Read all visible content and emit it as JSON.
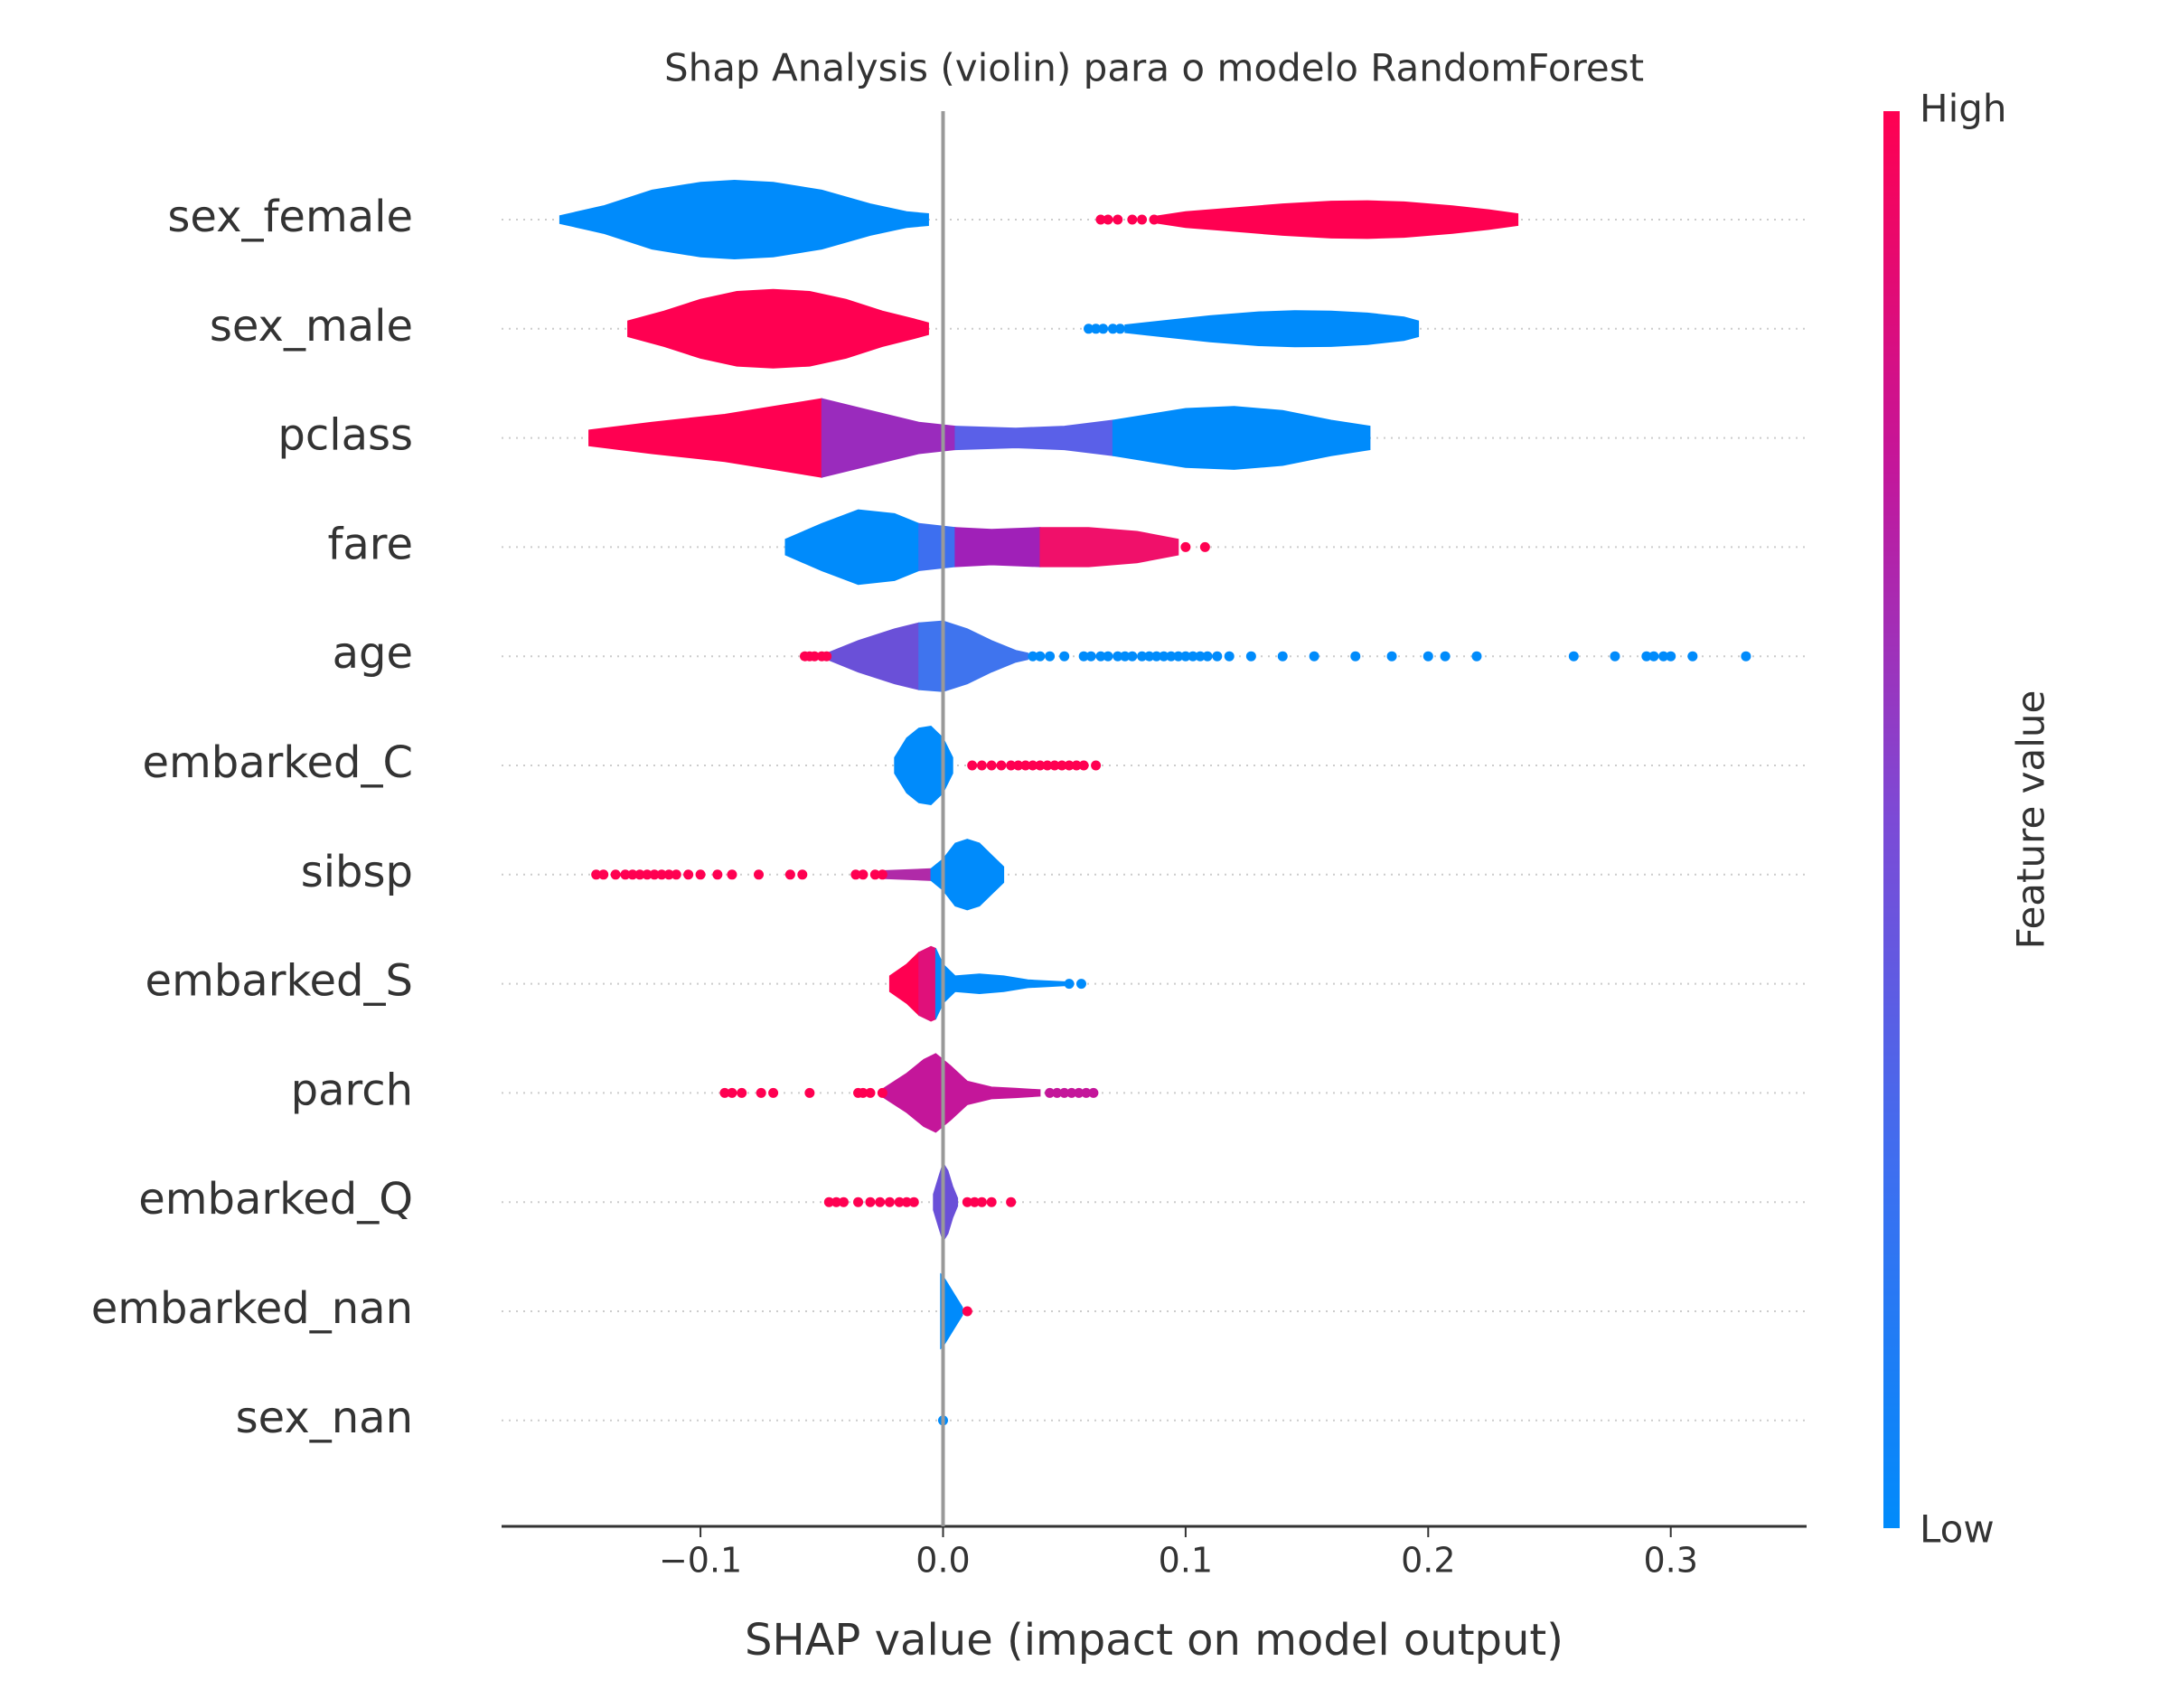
{
  "chart_data": {
    "type": "violin",
    "title": "Shap Analysis (violin) para o modelo RandomForest",
    "xlabel": "SHAP value (impact on model output)",
    "xlim": [
      -0.182,
      0.356
    ],
    "xticks": [
      {
        "value": -0.1,
        "label": "−0.1"
      },
      {
        "value": 0.0,
        "label": "0.0"
      },
      {
        "value": 0.1,
        "label": "0.1"
      },
      {
        "value": 0.2,
        "label": "0.2"
      },
      {
        "value": 0.3,
        "label": "0.3"
      }
    ],
    "colorbar": {
      "label": "Feature value",
      "high": "High",
      "low": "Low",
      "colors": [
        "#008bfb",
        "#3d6ff0",
        "#7c4ad6",
        "#c4169a",
        "#ff0051"
      ]
    },
    "features": [
      {
        "name": "sex_female",
        "violins": [
          {
            "color": "#008bfb",
            "x": [
              -0.158,
              -0.14,
              -0.12,
              -0.1,
              -0.086,
              -0.07,
              -0.05,
              -0.03,
              -0.015,
              -0.006
            ],
            "density": [
              0.1,
              0.35,
              0.75,
              0.95,
              1,
              0.95,
              0.75,
              0.4,
              0.2,
              0.15
            ]
          },
          {
            "color": "#ff0051",
            "x": [
              0.087,
              0.1,
              0.12,
              0.14,
              0.16,
              0.175,
              0.19,
              0.21,
              0.225,
              0.237
            ],
            "density": [
              0.08,
              0.2,
              0.3,
              0.4,
              0.47,
              0.48,
              0.45,
              0.35,
              0.25,
              0.15
            ]
          }
        ],
        "points": [
          {
            "color": "#ff0051",
            "x": [
              0.065,
              0.068,
              0.072,
              0.078,
              0.082,
              0.087
            ]
          }
        ]
      },
      {
        "name": "sex_male",
        "violins": [
          {
            "color": "#ff0051",
            "x": [
              -0.13,
              -0.115,
              -0.1,
              -0.085,
              -0.07,
              -0.055,
              -0.04,
              -0.025,
              -0.012,
              -0.006
            ],
            "density": [
              0.2,
              0.45,
              0.75,
              0.95,
              1,
              0.95,
              0.75,
              0.45,
              0.25,
              0.15
            ]
          },
          {
            "color": "#008bfb",
            "x": [
              0.075,
              0.09,
              0.11,
              0.13,
              0.145,
              0.16,
              0.175,
              0.19,
              0.196
            ],
            "density": [
              0.1,
              0.2,
              0.33,
              0.43,
              0.46,
              0.45,
              0.4,
              0.3,
              0.2
            ]
          }
        ],
        "points": [
          {
            "color": "#008bfb",
            "x": [
              0.06,
              0.063,
              0.066,
              0.07,
              0.073
            ]
          }
        ]
      },
      {
        "name": "pclass",
        "violins": [
          {
            "color": "#ff0051",
            "x": [
              -0.146,
              -0.12,
              -0.09,
              -0.07,
              -0.05
            ],
            "density": [
              0.2,
              0.4,
              0.6,
              0.8,
              1.0
            ]
          },
          {
            "color": "#9a2bbd",
            "x": [
              -0.05,
              -0.03,
              -0.01,
              0.005
            ],
            "density": [
              1.0,
              0.7,
              0.4,
              0.3
            ]
          },
          {
            "color": "#5a60e8",
            "x": [
              0.005,
              0.03,
              0.05,
              0.07
            ],
            "density": [
              0.3,
              0.25,
              0.3,
              0.45
            ]
          },
          {
            "color": "#008bfb",
            "x": [
              0.07,
              0.1,
              0.12,
              0.14,
              0.16,
              0.176
            ],
            "density": [
              0.45,
              0.75,
              0.8,
              0.7,
              0.45,
              0.3
            ]
          }
        ],
        "points": []
      },
      {
        "name": "fare",
        "violins": [
          {
            "color": "#008bfb",
            "x": [
              -0.065,
              -0.05,
              -0.035,
              -0.02,
              -0.01
            ],
            "density": [
              0.2,
              0.6,
              0.95,
              0.85,
              0.6
            ]
          },
          {
            "color": "#3d6ff0",
            "x": [
              -0.01,
              0.005
            ],
            "density": [
              0.6,
              0.5
            ]
          },
          {
            "color": "#a020b8",
            "x": [
              0.005,
              0.02,
              0.04
            ],
            "density": [
              0.5,
              0.45,
              0.5
            ]
          },
          {
            "color": "#f0106a",
            "x": [
              0.04,
              0.06,
              0.08,
              0.097
            ],
            "density": [
              0.5,
              0.5,
              0.4,
              0.2
            ]
          }
        ],
        "points": [
          {
            "color": "#ff0051",
            "x": [
              0.1,
              0.108
            ]
          }
        ]
      },
      {
        "name": "age",
        "violins": [
          {
            "color": "#6a50d8",
            "x": [
              -0.047,
              -0.035,
              -0.02,
              -0.01
            ],
            "density": [
              0.1,
              0.4,
              0.7,
              0.85
            ]
          },
          {
            "color": "#3f74ee",
            "x": [
              -0.01,
              0,
              0.01,
              0.02,
              0.03,
              0.035
            ],
            "density": [
              0.85,
              0.9,
              0.7,
              0.4,
              0.15,
              0.08
            ]
          }
        ],
        "points": [
          {
            "color": "#ff0051",
            "x": [
              -0.057,
              -0.055,
              -0.053,
              -0.05,
              -0.048
            ]
          },
          {
            "color": "#008bfb",
            "x": [
              0.037,
              0.04,
              0.044,
              0.05,
              0.058,
              0.061,
              0.065,
              0.068,
              0.072,
              0.075,
              0.078,
              0.082,
              0.085,
              0.088,
              0.091,
              0.094,
              0.097,
              0.1,
              0.103,
              0.106,
              0.109,
              0.113,
              0.118,
              0.127,
              0.14,
              0.153,
              0.17,
              0.185,
              0.2,
              0.207,
              0.22,
              0.26,
              0.277,
              0.29,
              0.293,
              0.297,
              0.3,
              0.309,
              0.331
            ]
          }
        ]
      },
      {
        "name": "embarked_C",
        "violins": [
          {
            "color": "#008bfb",
            "x": [
              -0.02,
              -0.015,
              -0.01,
              -0.005,
              0,
              0.004
            ],
            "density": [
              0.2,
              0.7,
              0.95,
              1.0,
              0.7,
              0.2
            ]
          }
        ],
        "points": [
          {
            "color": "#ff0051",
            "x": [
              0.012,
              0.016,
              0.02,
              0.024,
              0.028,
              0.031,
              0.034,
              0.037,
              0.04,
              0.043,
              0.046,
              0.049,
              0.052,
              0.055,
              0.058,
              0.063
            ]
          }
        ]
      },
      {
        "name": "sibsp",
        "violins": [
          {
            "color": "#b02aa8",
            "x": [
              -0.025,
              -0.005
            ],
            "density": [
              0.1,
              0.15
            ]
          },
          {
            "color": "#008bfb",
            "x": [
              -0.005,
              0,
              0.005,
              0.01,
              0.015,
              0.02,
              0.025
            ],
            "density": [
              0.15,
              0.4,
              0.8,
              0.9,
              0.8,
              0.5,
              0.2
            ]
          }
        ],
        "points": [
          {
            "color": "#ff0051",
            "x": [
              -0.143,
              -0.14,
              -0.135,
              -0.131,
              -0.128,
              -0.125,
              -0.122,
              -0.119,
              -0.116,
              -0.113,
              -0.11,
              -0.105,
              -0.1,
              -0.093,
              -0.087,
              -0.076,
              -0.063,
              -0.058,
              -0.036,
              -0.033,
              -0.028,
              -0.025
            ]
          }
        ]
      },
      {
        "name": "embarked_S",
        "violins": [
          {
            "color": "#ff0051",
            "x": [
              -0.022,
              -0.015,
              -0.01
            ],
            "density": [
              0.2,
              0.5,
              0.8
            ]
          },
          {
            "color": "#e0107a",
            "x": [
              -0.01,
              -0.005,
              -0.003
            ],
            "density": [
              0.8,
              0.95,
              0.9
            ]
          },
          {
            "color": "#008bfb",
            "x": [
              -0.003,
              0,
              0.005,
              0.015,
              0.025,
              0.035,
              0.05
            ],
            "density": [
              0.9,
              0.5,
              0.2,
              0.25,
              0.2,
              0.1,
              0.05
            ]
          }
        ],
        "points": [
          {
            "color": "#008bfb",
            "x": [
              0.052,
              0.057
            ]
          }
        ]
      },
      {
        "name": "parch",
        "violins": [
          {
            "color": "#c4169a",
            "x": [
              -0.025,
              -0.015,
              -0.008,
              -0.003,
              0.003,
              0.01,
              0.02,
              0.03,
              0.04
            ],
            "density": [
              0.1,
              0.5,
              0.85,
              1.0,
              0.7,
              0.3,
              0.15,
              0.12,
              0.08
            ]
          }
        ],
        "points": [
          {
            "color": "#ff0051",
            "x": [
              -0.09,
              -0.087,
              -0.083,
              -0.075,
              -0.07,
              -0.055,
              -0.035,
              -0.033,
              -0.03,
              -0.025
            ]
          },
          {
            "color": "#c4169a",
            "x": [
              0.044,
              0.047,
              0.05,
              0.053,
              0.056,
              0.059,
              0.062
            ]
          }
        ]
      },
      {
        "name": "embarked_Q",
        "violins": [
          {
            "color": "#6a50d8",
            "x": [
              -0.004,
              -0.002,
              0,
              0.002,
              0.004,
              0.006
            ],
            "density": [
              0.2,
              0.6,
              1.0,
              0.8,
              0.4,
              0.1
            ]
          }
        ],
        "points": [
          {
            "color": "#ff0051",
            "x": [
              -0.047,
              -0.044,
              -0.041,
              -0.035,
              -0.03,
              -0.026,
              -0.022,
              -0.018,
              -0.015,
              -0.012,
              0.01,
              0.013,
              0.016,
              0.02,
              0.028
            ]
          }
        ]
      },
      {
        "name": "embarked_nan",
        "violins": [
          {
            "color": "#008bfb",
            "x": [
              -0.001,
              0,
              0.002,
              0.004,
              0.006,
              0.008
            ],
            "density": [
              0.95,
              0.9,
              0.7,
              0.5,
              0.3,
              0.1
            ]
          }
        ],
        "points": [
          {
            "color": "#ff0051",
            "x": [
              0.01
            ]
          }
        ]
      },
      {
        "name": "sex_nan",
        "violins": [
          {
            "color": "#008bfb",
            "x": [
              -0.0005,
              0.0005
            ],
            "density": [
              0.95,
              0.95
            ]
          }
        ],
        "points": [
          {
            "color": "#008bfb",
            "x": [
              0
            ]
          }
        ]
      }
    ]
  }
}
